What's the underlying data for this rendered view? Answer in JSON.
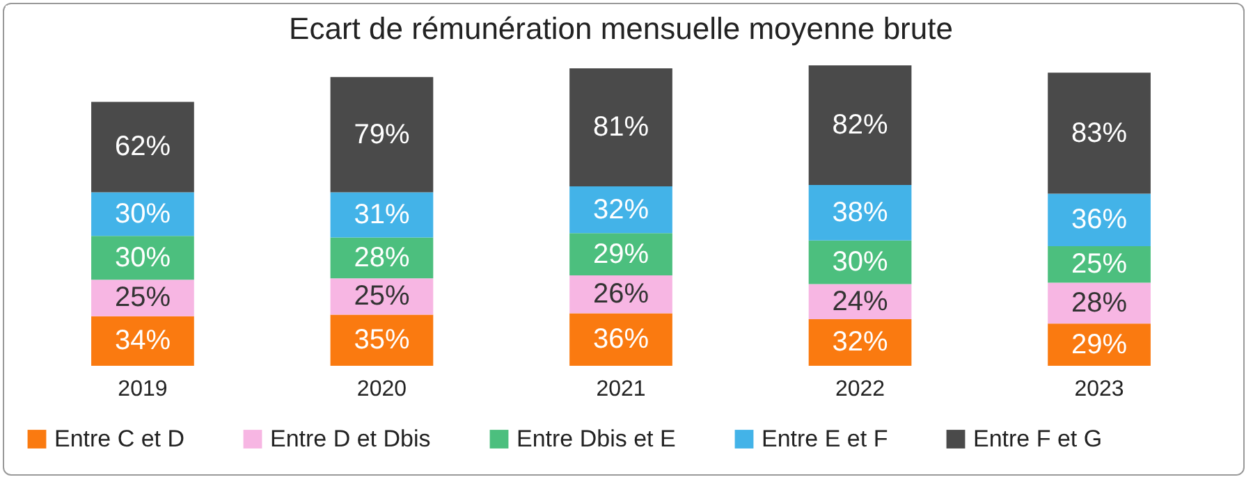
{
  "chart_data": {
    "type": "bar",
    "title": "Ecart de rémunération mensuelle moyenne brute",
    "stacked": true,
    "legend": "bottom",
    "categories": [
      "2019",
      "2020",
      "2021",
      "2022",
      "2023"
    ],
    "series": [
      {
        "name": "Entre C et D",
        "color": "#fa7a10",
        "values": [
          34,
          35,
          36,
          32,
          29
        ],
        "value_labels": [
          "34%",
          "35%",
          "36%",
          "32%",
          "29%"
        ]
      },
      {
        "name": "Entre D et Dbis",
        "color": "#f7b6e3",
        "values": [
          25,
          25,
          26,
          24,
          28
        ],
        "value_labels": [
          "25%",
          "25%",
          "26%",
          "24%",
          "28%"
        ]
      },
      {
        "name": "Entre Dbis et E",
        "color": "#4cbf7e",
        "values": [
          30,
          28,
          29,
          30,
          25
        ],
        "value_labels": [
          "30%",
          "28%",
          "29%",
          "30%",
          "25%"
        ]
      },
      {
        "name": "Entre E et F",
        "color": "#43b3e8",
        "values": [
          30,
          31,
          32,
          38,
          36
        ],
        "value_labels": [
          "30%",
          "31%",
          "32%",
          "38%",
          "36%"
        ]
      },
      {
        "name": "Entre F et G",
        "color": "#4a4a4a",
        "values": [
          62,
          79,
          81,
          82,
          83
        ],
        "value_labels": [
          "62%",
          "79%",
          "81%",
          "82%",
          "83%"
        ]
      }
    ]
  }
}
